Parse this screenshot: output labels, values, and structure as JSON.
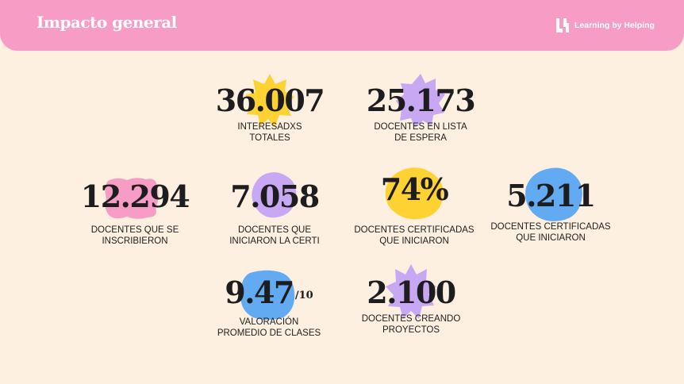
{
  "header": {
    "title": "Impacto general",
    "brand_name": "Learning by Helping",
    "brand_logo": "lh-monogram-logo",
    "colors": {
      "header_bg": "#f79cc4",
      "page_bg": "#fdf0e0",
      "yellow": "#ffd233",
      "purple": "#c8a8f2",
      "pink": "#f79cc4",
      "blue": "#62aaf2"
    }
  },
  "stats": [
    {
      "value": "36.007",
      "label_line1": "INTERESADXS",
      "label_line2": "TOTALES",
      "shape": "yellow-star-burst"
    },
    {
      "value": "25.173",
      "label_line1": "DOCENTES EN LISTA",
      "label_line2": "DE ESPERA",
      "shape": "purple-star-burst"
    },
    {
      "value": "12.294",
      "label_line1": "DOCENTES QUE SE",
      "label_line2": "INSCRIBIERON",
      "shape": "pink-wavy-rectangle"
    },
    {
      "value": "7.058",
      "label_line1": "DOCENTES QUE",
      "label_line2": "INICIARON LA CERTI",
      "shape": "purple-blob"
    },
    {
      "value": "74%",
      "label_line1": "DOCENTES CERTIFICADAS",
      "label_line2": "QUE INICIARON",
      "shape": "yellow-blob"
    },
    {
      "value": "5.211",
      "label_line1": "DOCENTES CERTIFICADAS",
      "label_line2": "QUE INICIARON",
      "shape": "blue-blob"
    },
    {
      "value": "9.47",
      "suffix": "/10",
      "label_line1": "VALORACIÓN",
      "label_line2": "PROMEDIO DE CLASES",
      "shape": "blue-blob"
    },
    {
      "value": "2.100",
      "label_line1": "DOCENTES CREANDO",
      "label_line2": "PROYECTOS",
      "shape": "purple-star-burst"
    }
  ]
}
